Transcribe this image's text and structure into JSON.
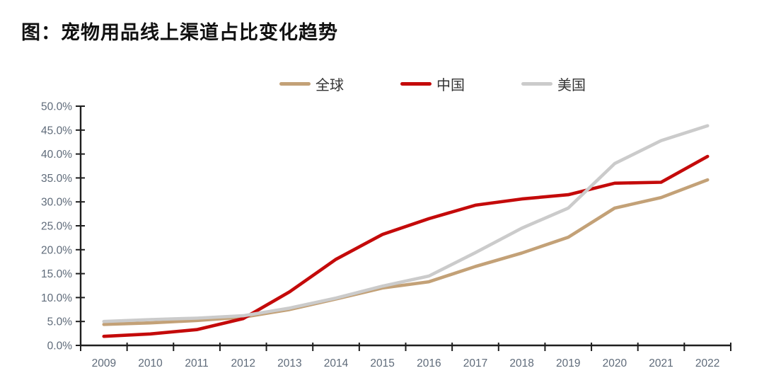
{
  "figure": {
    "title": "图：宠物用品线上渠道占比变化趋势"
  },
  "colors": {
    "background": "#ffffff",
    "axis": "#1f1f1f",
    "tick_label": "#5f6b7a",
    "legend_text": "#333333",
    "series_global": "#c3a177",
    "series_china": "#c40a0a",
    "series_usa": "#cbcbcb"
  },
  "chart_data": {
    "type": "line",
    "title": "宠物用品线上渠道占比变化趋势",
    "categories": [
      "2009",
      "2010",
      "2011",
      "2012",
      "2013",
      "2014",
      "2015",
      "2016",
      "2017",
      "2018",
      "2019",
      "2020",
      "2021",
      "2022"
    ],
    "series": [
      {
        "name": "全球",
        "color": "#c3a177",
        "values": [
          4.4,
          4.7,
          5.2,
          5.9,
          7.5,
          9.7,
          12.0,
          13.3,
          16.5,
          19.3,
          22.6,
          28.7,
          30.9,
          34.6
        ]
      },
      {
        "name": "中国",
        "color": "#c40a0a",
        "values": [
          1.9,
          2.4,
          3.3,
          5.6,
          11.2,
          18.0,
          23.2,
          26.5,
          29.3,
          30.6,
          31.5,
          33.9,
          34.1,
          39.5
        ]
      },
      {
        "name": "美国",
        "color": "#cbcbcb",
        "values": [
          5.0,
          5.4,
          5.7,
          6.2,
          7.8,
          9.9,
          12.4,
          14.5,
          19.4,
          24.5,
          28.7,
          38.0,
          42.8,
          45.9
        ]
      }
    ],
    "xlabel": "",
    "ylabel": "",
    "ylim": [
      0,
      50
    ],
    "y_tick_step": 5,
    "y_tick_labels": [
      "0.0%",
      "5.0%",
      "10.0%",
      "15.0%",
      "20.0%",
      "25.0%",
      "30.0%",
      "35.0%",
      "40.0%",
      "45.0%",
      "50.0%"
    ],
    "grid": false,
    "legend_position": "top"
  }
}
